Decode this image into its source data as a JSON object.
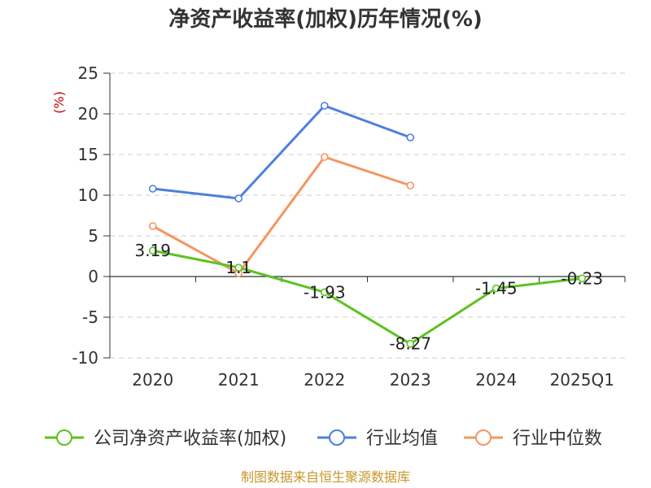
{
  "chart_data": {
    "type": "line",
    "title": "净资产收益率(加权)历年情况(%)",
    "y_unit": "(%)",
    "categories": [
      "2020",
      "2021",
      "2022",
      "2023",
      "2024",
      "2025Q1"
    ],
    "ylim": [
      -10,
      25
    ],
    "yticks": [
      25,
      20,
      15,
      10,
      5,
      0,
      -5,
      -10
    ],
    "grid": true,
    "legend_position": "bottom",
    "series": [
      {
        "name": "公司净资产收益率(加权)",
        "color": "#5cc21f",
        "values": [
          3.19,
          1.1,
          -1.93,
          -8.27,
          -1.45,
          -0.23
        ],
        "labels": [
          "3.19",
          "1.1",
          "-1.93",
          "-8.27",
          "-1.45",
          "-0.23"
        ]
      },
      {
        "name": "行业均值",
        "color": "#4d7fdc",
        "values": [
          10.8,
          9.6,
          21.0,
          17.1,
          null,
          null
        ]
      },
      {
        "name": "行业中位数",
        "color": "#f49560",
        "values": [
          6.2,
          0.4,
          14.7,
          11.2,
          null,
          null
        ]
      }
    ]
  },
  "footer": {
    "source": "制图数据来自恒生聚源数据库"
  }
}
